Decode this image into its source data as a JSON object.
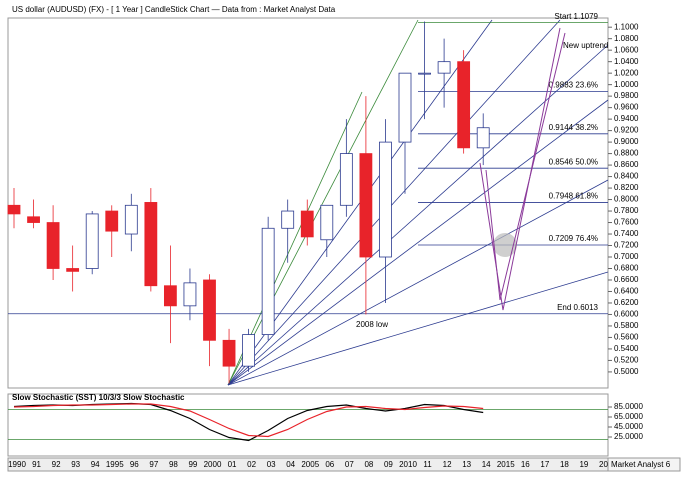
{
  "chart_data": {
    "type": "candlestick",
    "title": "US dollar (AUDUSD) (FX) - [ 1 Year ] CandleStick Chart — Data from : Market Analyst Data",
    "categories": [
      "1990",
      "91",
      "92",
      "93",
      "94",
      "1995",
      "96",
      "97",
      "98",
      "99",
      "2000",
      "01",
      "02",
      "03",
      "04",
      "2005",
      "06",
      "07",
      "08",
      "09",
      "2010",
      "11",
      "12",
      "13",
      "14",
      "2015",
      "16",
      "17",
      "18",
      "19",
      "20"
    ],
    "open": [
      0.79,
      0.77,
      0.76,
      0.68,
      0.68,
      0.78,
      0.74,
      0.795,
      0.65,
      0.615,
      0.66,
      0.555,
      0.51,
      0.565,
      0.75,
      0.78,
      0.73,
      0.79,
      0.88,
      0.7,
      0.9,
      1.02,
      1.02,
      1.04,
      0.89,
      null,
      null,
      null,
      null,
      null,
      null
    ],
    "high": [
      0.82,
      0.8,
      0.79,
      0.72,
      0.78,
      0.79,
      0.81,
      0.82,
      0.72,
      0.68,
      0.67,
      0.575,
      0.575,
      0.77,
      0.8,
      0.8,
      0.79,
      0.94,
      0.98,
      0.94,
      1.02,
      1.11,
      1.08,
      1.06,
      0.95,
      null,
      null,
      null,
      null,
      null,
      null
    ],
    "low": [
      0.75,
      0.75,
      0.66,
      0.64,
      0.67,
      0.7,
      0.71,
      0.64,
      0.55,
      0.59,
      0.51,
      0.48,
      0.5,
      0.555,
      0.69,
      0.72,
      0.7,
      0.77,
      0.6,
      0.62,
      0.81,
      0.94,
      0.96,
      0.88,
      0.86,
      null,
      null,
      null,
      null,
      null,
      null
    ],
    "close": [
      0.775,
      0.76,
      0.68,
      0.675,
      0.775,
      0.745,
      0.79,
      0.65,
      0.615,
      0.655,
      0.555,
      0.51,
      0.565,
      0.75,
      0.78,
      0.735,
      0.79,
      0.88,
      0.7,
      0.9,
      1.02,
      1.02,
      1.04,
      0.89,
      0.925,
      null,
      null,
      null,
      null,
      null,
      null
    ],
    "up_color": "#ffffff",
    "up_edge": "#2b3a8f",
    "down_color": "#e8232a",
    "ylim": [
      0.472,
      1.116
    ],
    "yticks": [
      {
        "value": 0.5,
        "label": "0.5000"
      },
      {
        "value": 0.52,
        "label": "0.5200"
      },
      {
        "value": 0.54,
        "label": "0.5400"
      },
      {
        "value": 0.56,
        "label": "0.5600"
      },
      {
        "value": 0.58,
        "label": "0.5800"
      },
      {
        "value": 0.6,
        "label": "0.6000"
      },
      {
        "value": 0.62,
        "label": "0.6200"
      },
      {
        "value": 0.64,
        "label": "0.6400"
      },
      {
        "value": 0.66,
        "label": "0.6600"
      },
      {
        "value": 0.68,
        "label": "0.6800"
      },
      {
        "value": 0.7,
        "label": "0.7000"
      },
      {
        "value": 0.72,
        "label": "0.7200"
      },
      {
        "value": 0.74,
        "label": "0.7400"
      },
      {
        "value": 0.76,
        "label": "0.7600"
      },
      {
        "value": 0.78,
        "label": "0.7800"
      },
      {
        "value": 0.8,
        "label": "0.8000"
      },
      {
        "value": 0.82,
        "label": "0.8200"
      },
      {
        "value": 0.84,
        "label": "0.8400"
      },
      {
        "value": 0.86,
        "label": "0.8600"
      },
      {
        "value": 0.88,
        "label": "0.8800"
      },
      {
        "value": 0.9,
        "label": "0.9000"
      },
      {
        "value": 0.92,
        "label": "0.9200"
      },
      {
        "value": 0.94,
        "label": "0.9400"
      },
      {
        "value": 0.96,
        "label": "0.9600"
      },
      {
        "value": 0.98,
        "label": "0.9800"
      },
      {
        "value": 1.0,
        "label": "1.0000"
      },
      {
        "value": 1.02,
        "label": "1.0200"
      },
      {
        "value": 1.04,
        "label": "1.0400"
      },
      {
        "value": 1.06,
        "label": "1.0600"
      },
      {
        "value": 1.08,
        "label": "1.0800"
      },
      {
        "value": 1.1,
        "label": "1.1000"
      }
    ],
    "fib_levels": [
      {
        "value": 1.1079,
        "label": "Start 1.1079",
        "color": "#3a8a3a"
      },
      {
        "value": 0.9883,
        "label": "0.9883 23.6%",
        "color": "#2b3a8f"
      },
      {
        "value": 0.9144,
        "label": "0.9144 38.2%",
        "color": "#2b3a8f"
      },
      {
        "value": 0.8546,
        "label": "0.8546 50.0%",
        "color": "#2b3a8f"
      },
      {
        "value": 0.7948,
        "label": "0.7948 61.8%",
        "color": "#2b3a8f"
      },
      {
        "value": 0.7209,
        "label": "0.7209 76.4%",
        "color": "#2b3a8f"
      },
      {
        "value": 0.6013,
        "label": "End 0.6013",
        "color": "#2b3a8f"
      }
    ],
    "annotations": [
      "New uptrend",
      "2008 low"
    ],
    "footer": "Market Analyst 6",
    "stochastic": {
      "title": "Slow Stochastic (SST) 10/3/3 Slow Stochastic",
      "ylim": [
        0,
        100
      ],
      "yticks": [
        {
          "value": 85,
          "label": "85.0000"
        },
        {
          "value": 65,
          "label": "65.0000"
        },
        {
          "value": 45,
          "label": "45.0000"
        },
        {
          "value": 25,
          "label": "25.0000"
        }
      ],
      "levels": [
        80,
        20
      ],
      "level_color": "#3a8a3a",
      "series": [
        {
          "color": "#000000",
          "values": [
            86,
            88,
            89,
            88,
            90,
            91,
            92,
            90,
            78,
            62,
            40,
            24,
            18,
            38,
            62,
            78,
            86,
            89,
            82,
            77,
            82,
            90,
            88,
            80,
            74,
            null,
            null,
            null,
            null,
            null,
            null
          ]
        },
        {
          "color": "#e8232a",
          "values": [
            85,
            86,
            88,
            89,
            89,
            90,
            91,
            91,
            86,
            77,
            60,
            42,
            28,
            26,
            40,
            60,
            76,
            85,
            86,
            82,
            80,
            84,
            87,
            86,
            82,
            null,
            null,
            null,
            null,
            null,
            null
          ]
        }
      ]
    }
  }
}
